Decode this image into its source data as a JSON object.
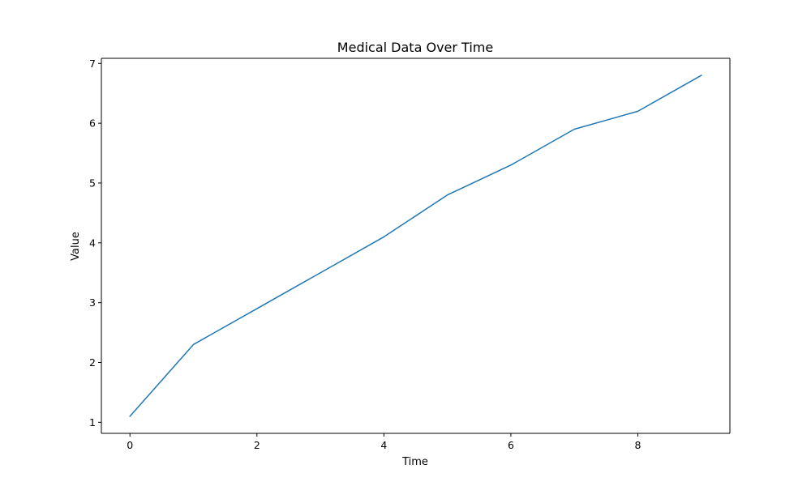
{
  "chart_data": {
    "type": "line",
    "title": "Medical Data Over Time",
    "xlabel": "Time",
    "ylabel": "Value",
    "x": [
      0,
      1,
      2,
      3,
      4,
      5,
      6,
      7,
      8,
      9
    ],
    "series": [
      {
        "values": [
          1.1,
          2.3,
          2.9,
          3.5,
          4.1,
          4.8,
          5.3,
          5.9,
          6.2,
          6.8
        ],
        "color": "#1f77b4"
      }
    ],
    "xlim": [
      -0.45,
      9.45
    ],
    "ylim": [
      0.815,
      7.085
    ],
    "xticks": [
      0,
      2,
      4,
      6,
      8
    ],
    "yticks": [
      1,
      2,
      3,
      4,
      5,
      6,
      7
    ],
    "grid": false,
    "legend": "none"
  }
}
